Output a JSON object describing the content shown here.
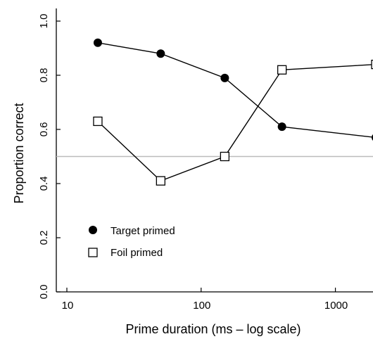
{
  "chart_data": {
    "type": "line",
    "xlabel": "Prime duration (ms – log scale)",
    "ylabel": "Proportion correct",
    "x_scale": "log",
    "xlim": [
      10,
      2000
    ],
    "ylim": [
      0,
      1.0
    ],
    "xticks": [
      10,
      100,
      1000
    ],
    "xtick_labels": [
      "10",
      "100",
      "1000"
    ],
    "yticks": [
      0,
      0.2,
      0.4,
      0.6,
      0.8,
      1.0
    ],
    "ytick_labels": [
      "0.0",
      "0.2",
      "0.4",
      "0.6",
      "0.8",
      "1.0"
    ],
    "reference_line": {
      "y": 0.5,
      "color": "#bbbbbb"
    },
    "legend": {
      "position": "lower-left"
    },
    "series": [
      {
        "name": "Target primed",
        "marker": "filled-circle",
        "color": "#000000",
        "x": [
          17,
          50,
          150,
          400,
          2000
        ],
        "y": [
          0.92,
          0.88,
          0.79,
          0.61,
          0.57
        ]
      },
      {
        "name": "Foil primed",
        "marker": "open-square",
        "color": "#000000",
        "x": [
          17,
          50,
          150,
          400,
          2000
        ],
        "y": [
          0.63,
          0.41,
          0.5,
          0.82,
          0.84
        ]
      }
    ]
  }
}
